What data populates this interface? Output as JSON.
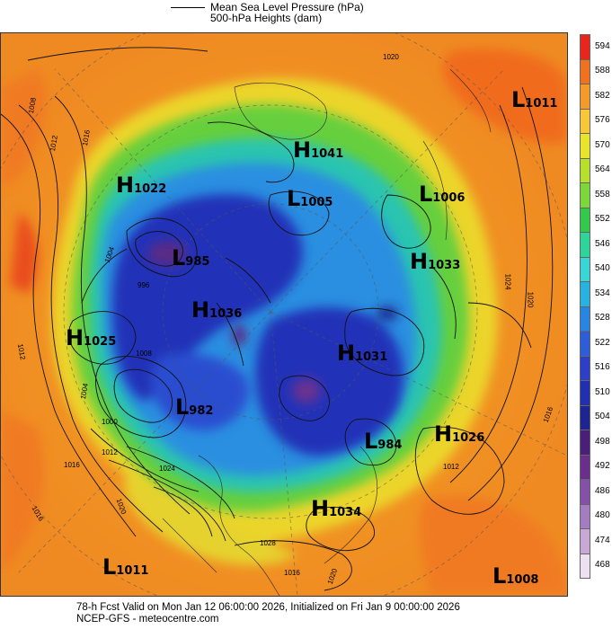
{
  "legend": {
    "line1": "Mean Sea Level Pressure (hPa)",
    "line2": "500-hPa Heights (dam)"
  },
  "colorbar": {
    "labels": [
      "594",
      "588",
      "582",
      "576",
      "570",
      "564",
      "558",
      "552",
      "546",
      "540",
      "534",
      "528",
      "522",
      "516",
      "510",
      "504",
      "498",
      "492",
      "486",
      "480",
      "474",
      "468"
    ],
    "colors": [
      "#e8261c",
      "#f0721f",
      "#f39a2a",
      "#f7c63a",
      "#e8e42e",
      "#b7e02c",
      "#7dd63a",
      "#33c94a",
      "#2fd49a",
      "#3ad6d6",
      "#27b2e0",
      "#2a85e0",
      "#2d5ed8",
      "#2d3fc8",
      "#2230b0",
      "#1e2590",
      "#4a1f7a",
      "#6a2f8e",
      "#8550a8",
      "#a57cc0",
      "#c9a8d6",
      "#ede0f0"
    ]
  },
  "pressure_centers": [
    {
      "letter": "H",
      "value": "1041"
    },
    {
      "letter": "L",
      "value": "1011"
    },
    {
      "letter": "H",
      "value": "1022"
    },
    {
      "letter": "L",
      "value": "1005"
    },
    {
      "letter": "L",
      "value": "1006"
    },
    {
      "letter": "L",
      "value": "985"
    },
    {
      "letter": "H",
      "value": "1033"
    },
    {
      "letter": "H",
      "value": "1036"
    },
    {
      "letter": "H",
      "value": "1025"
    },
    {
      "letter": "H",
      "value": "1031"
    },
    {
      "letter": "L",
      "value": "982"
    },
    {
      "letter": "L",
      "value": "984"
    },
    {
      "letter": "H",
      "value": "1026"
    },
    {
      "letter": "H",
      "value": "1034"
    },
    {
      "letter": "L",
      "value": "1011"
    },
    {
      "letter": "L",
      "value": "1008"
    }
  ],
  "contour_labels": [
    "1020",
    "1008",
    "1012",
    "1016",
    "1012",
    "1004",
    "1016",
    "1016",
    "1012",
    "1024",
    "1020",
    "1028",
    "1016",
    "1020",
    "1016",
    "1012",
    "1024",
    "1020",
    "1008",
    "1004",
    "1000",
    "996"
  ],
  "footer": {
    "line1": "78-h Fcst Valid on Mon Jan 12 06:00:00 2026, Initialized on Fri Jan  9 00:00:00 2026",
    "line2": "NCEP-GFS  - meteocentre.com"
  }
}
